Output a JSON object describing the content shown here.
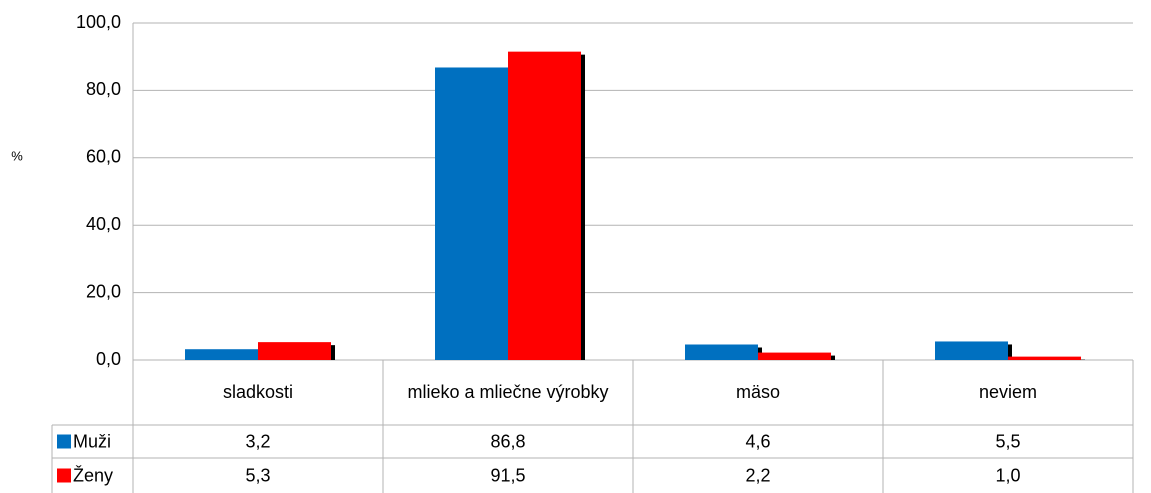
{
  "chart_data": {
    "type": "bar",
    "y_label": "%",
    "categories": [
      "sladkosti",
      "mlieko a mliečne výrobky",
      "mäso",
      "neviem"
    ],
    "series": [
      {
        "name": "Muži",
        "color": "#0070c0",
        "values": [
          3.2,
          86.8,
          4.6,
          5.5
        ],
        "value_labels": [
          "3,2",
          "86,8",
          "4,6",
          "5,5"
        ]
      },
      {
        "name": "Ženy",
        "color": "#ff0000",
        "values": [
          5.3,
          91.5,
          2.2,
          1.0
        ],
        "value_labels": [
          "5,3",
          "91,5",
          "2,2",
          "1,0"
        ]
      }
    ],
    "ylim": [
      0,
      100
    ],
    "yticks": [
      {
        "value": 0,
        "label": "0,0"
      },
      {
        "value": 20,
        "label": "20,0"
      },
      {
        "value": 40,
        "label": "40,0"
      },
      {
        "value": 60,
        "label": "60,0"
      },
      {
        "value": 80,
        "label": "80,0"
      },
      {
        "value": 100,
        "label": "100,0"
      }
    ],
    "grid": true
  }
}
